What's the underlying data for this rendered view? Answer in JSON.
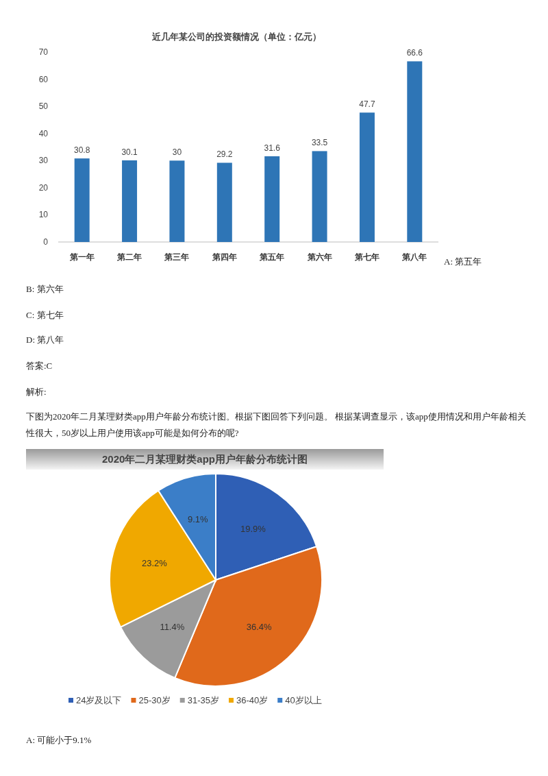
{
  "chart_data": [
    {
      "type": "bar",
      "title": "近几年某公司的投资额情况（单位：亿元）",
      "categories": [
        "第一年",
        "第二年",
        "第三年",
        "第四年",
        "第五年",
        "第六年",
        "第七年",
        "第八年"
      ],
      "values": [
        30.8,
        30.1,
        30,
        29.2,
        31.6,
        33.5,
        47.7,
        66.6
      ],
      "color": "#2e75b6",
      "ylim": [
        0,
        70
      ],
      "yticks": [
        0,
        10,
        20,
        30,
        40,
        50,
        60,
        70
      ],
      "data_labels": true,
      "annotations": [
        "A: 第五年",
        "B: 第六年",
        "C: 第七年",
        "D: 第八年",
        "答案:C",
        "解析:",
        "下图为2020年二月某理财类app用户年龄分布统计图。根据下图回答下列问题。 根据某调查显示，该app使用情况和用户年龄相关性很大，50岁以上用户使用该app可能是如何分布的呢?"
      ]
    },
    {
      "type": "pie",
      "title": "2020年二月某理财类app用户年龄分布统计图",
      "categories": [
        "24岁及以下",
        "25-30岁",
        "31-35岁",
        "36-40岁",
        "40岁以上"
      ],
      "values": [
        19.9,
        36.4,
        11.4,
        23.2,
        9.1
      ],
      "colors": [
        "#2f5fb5",
        "#e0691b",
        "#9b9b9b",
        "#f0a800",
        "#3b7ec8"
      ],
      "value_labels": [
        "19.9%",
        "36.4%",
        "11.4%",
        "23.2%",
        "9.1%"
      ],
      "legend": "bottom",
      "annotations": [
        "A: 可能小于9.1%"
      ]
    }
  ]
}
